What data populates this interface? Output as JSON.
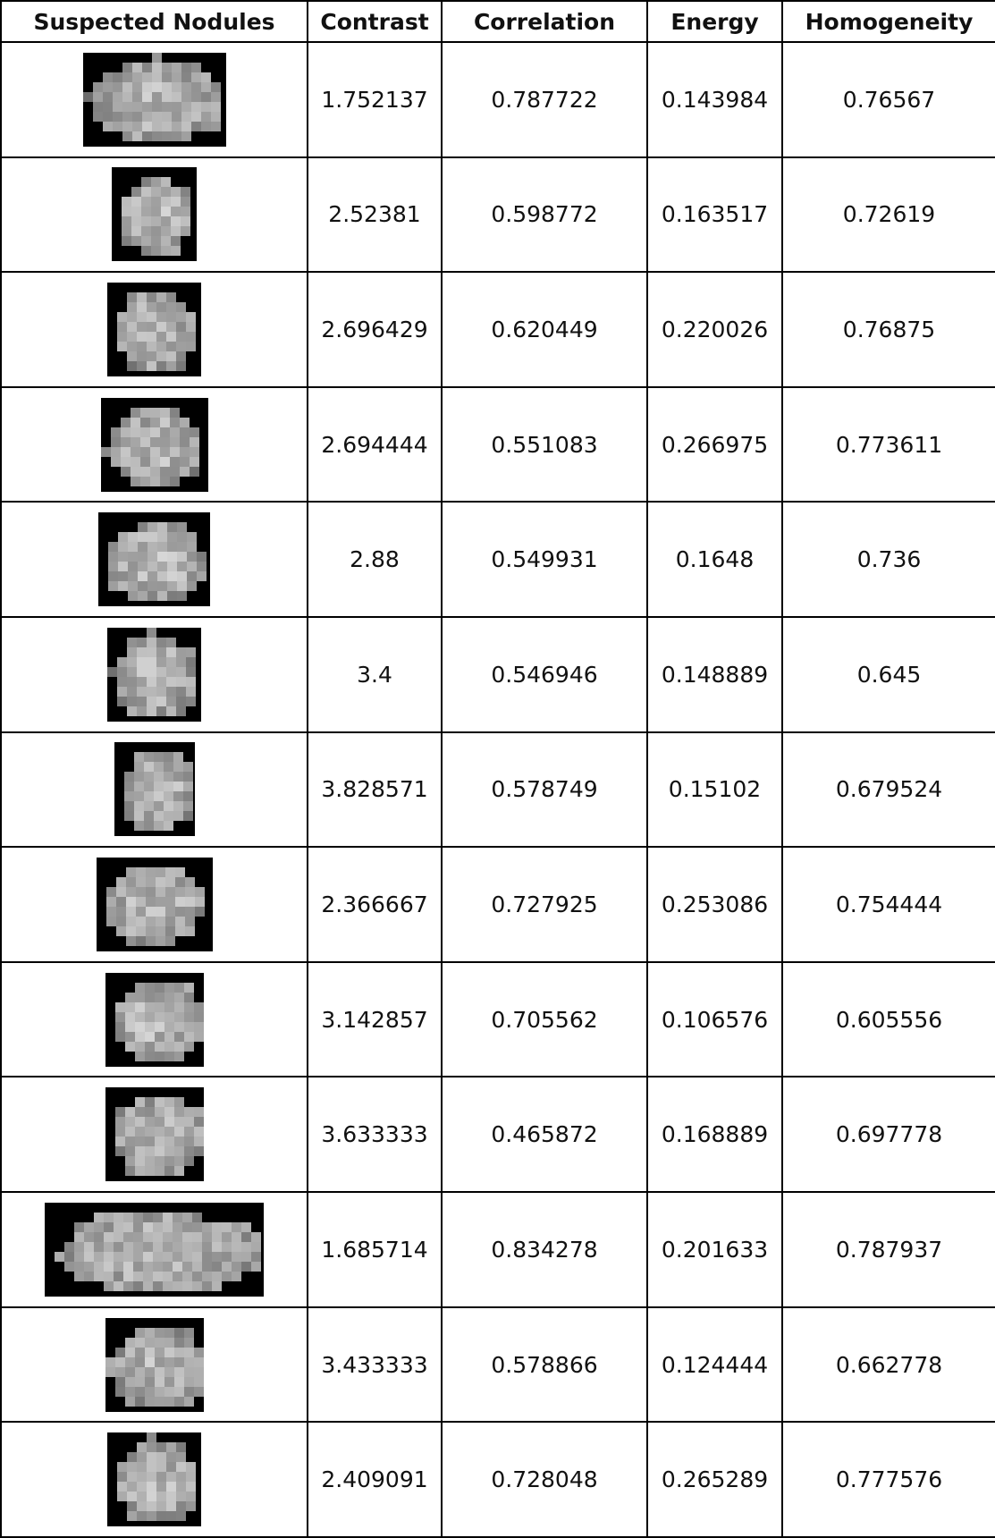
{
  "table": {
    "columns": [
      "Suspected Nodules",
      "Contrast",
      "Correlation",
      "Energy",
      "Homogeneity"
    ],
    "rows": [
      [
        1.752137,
        0.787722,
        0.143984,
        0.76567
      ],
      [
        2.52381,
        0.598772,
        0.163517,
        0.72619
      ],
      [
        2.696429,
        0.620449,
        0.220026,
        0.76875
      ],
      [
        2.694444,
        0.551083,
        0.266975,
        0.773611
      ],
      [
        2.88,
        0.549931,
        0.1648,
        0.736
      ],
      [
        3.4,
        0.546946,
        0.148889,
        0.645
      ],
      [
        3.828571,
        0.578749,
        0.15102,
        0.679524
      ],
      [
        2.366667,
        0.727925,
        0.253086,
        0.754444
      ],
      [
        3.142857,
        0.705562,
        0.106576,
        0.605556
      ],
      [
        3.633333,
        0.465872,
        0.168889,
        0.697778
      ],
      [
        1.685714,
        0.834278,
        0.201633,
        0.787937
      ],
      [
        3.433333,
        0.578866,
        0.124444,
        0.662778
      ],
      [
        2.409091,
        0.728048,
        0.265289,
        0.777576
      ]
    ]
  }
}
